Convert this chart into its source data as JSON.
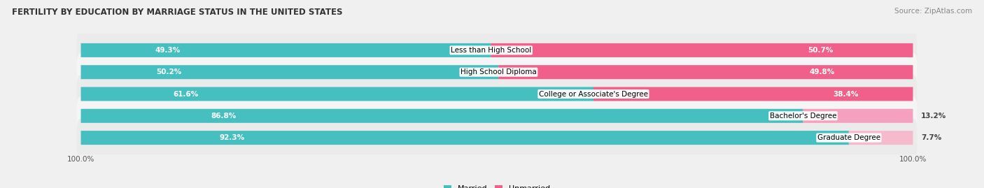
{
  "title": "FERTILITY BY EDUCATION BY MARRIAGE STATUS IN THE UNITED STATES",
  "source": "Source: ZipAtlas.com",
  "categories": [
    "Less than High School",
    "High School Diploma",
    "College or Associate's Degree",
    "Bachelor's Degree",
    "Graduate Degree"
  ],
  "married": [
    49.3,
    50.2,
    61.6,
    86.8,
    92.3
  ],
  "unmarried": [
    50.7,
    49.8,
    38.4,
    13.2,
    7.7
  ],
  "married_color": "#45BFBF",
  "unmarried_colors": [
    "#F0608A",
    "#F0608A",
    "#F0608A",
    "#F5A0BE",
    "#F5BBCC"
  ],
  "bg_color": "#F0F0F0",
  "bar_bg_color": "#E0E0E8",
  "row_bg_even": "#EBEBEB",
  "row_bg_odd": "#F5F5F5",
  "title_fontsize": 8.5,
  "source_fontsize": 7.5,
  "label_fontsize": 7.5,
  "category_fontsize": 7.5,
  "bar_height": 0.62,
  "legend_fontsize": 8
}
